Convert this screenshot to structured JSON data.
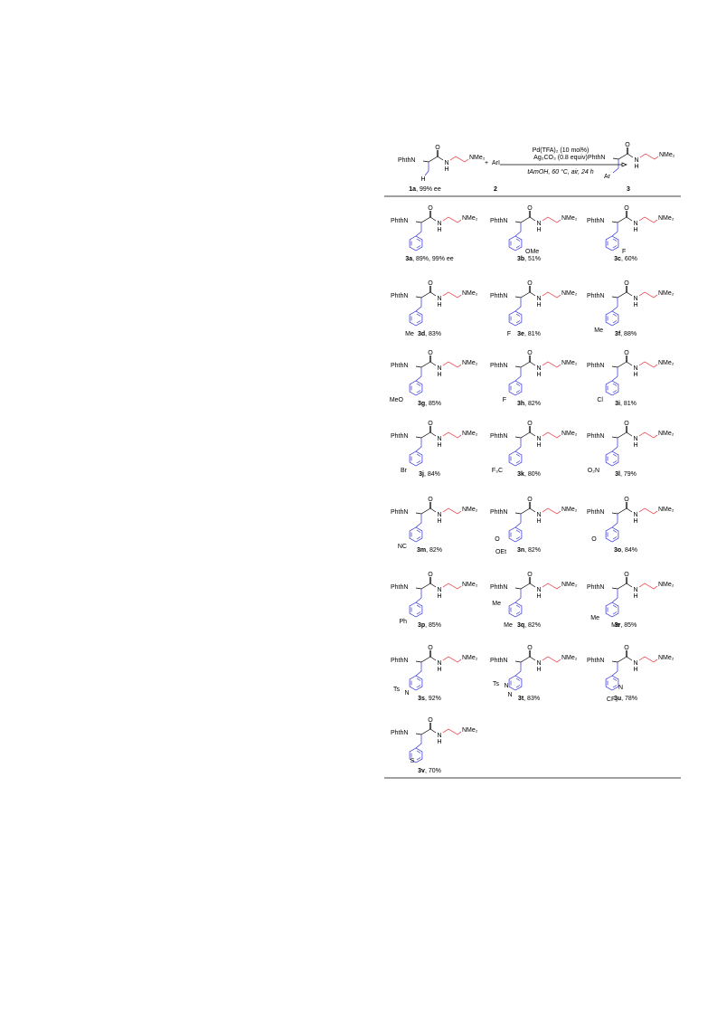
{
  "common": {
    "phthn": "PhthN",
    "o": "O",
    "n": "N",
    "h": "H",
    "nme2": "NMe₂"
  },
  "reaction": {
    "reactant_h": "H",
    "reactant_id": "1a",
    "reactant_note": ", 99% ee",
    "plus": "+",
    "reagent": "ArI",
    "reagent_id": "2",
    "conditions": [
      "Pd(TFA)₂ (10 mol%)",
      "Ag₂CO₃ (0.8 equiv)",
      "tAmOH, 60 °C, air, 24 h"
    ],
    "product_ar": "Ar",
    "product_id": "3"
  },
  "products": [
    {
      "id": "3a",
      "yield": ", 89%, 99% ee",
      "subs": []
    },
    {
      "id": "3b",
      "yield": ", 51%",
      "subs": [
        "OMe"
      ]
    },
    {
      "id": "3c",
      "yield": ", 60%",
      "subs": [
        "F"
      ]
    },
    {
      "id": "3d",
      "yield": ", 83%",
      "subs": [
        "Me"
      ]
    },
    {
      "id": "3e",
      "yield": ", 81%",
      "subs": [
        "F"
      ]
    },
    {
      "id": "3f",
      "yield": ", 88%",
      "subs": [
        "Me"
      ]
    },
    {
      "id": "3g",
      "yield": ", 85%",
      "subs": [
        "MeO"
      ]
    },
    {
      "id": "3h",
      "yield": ", 82%",
      "subs": [
        "F"
      ]
    },
    {
      "id": "3i",
      "yield": ", 81%",
      "subs": [
        "Cl"
      ]
    },
    {
      "id": "3j",
      "yield": ", 84%",
      "subs": [
        "Br"
      ]
    },
    {
      "id": "3k",
      "yield": ", 80%",
      "subs": [
        "F₃C"
      ]
    },
    {
      "id": "3l",
      "yield": ", 79%",
      "subs": [
        "O₂N"
      ]
    },
    {
      "id": "3m",
      "yield": ", 82%",
      "subs": [
        "NC"
      ]
    },
    {
      "id": "3n",
      "yield": ", 82%",
      "subs": [
        "O",
        "OEt"
      ]
    },
    {
      "id": "3o",
      "yield": ", 84%",
      "subs": [
        "O"
      ]
    },
    {
      "id": "3p",
      "yield": ", 85%",
      "subs": [
        "Ph"
      ]
    },
    {
      "id": "3q",
      "yield": ", 82%",
      "subs": [
        "Me",
        "Me"
      ]
    },
    {
      "id": "3r",
      "yield": ", 85%",
      "subs": [
        "Me",
        "Me"
      ]
    },
    {
      "id": "3s",
      "yield": ", 92%",
      "subs": [
        "Ts",
        "N"
      ]
    },
    {
      "id": "3t",
      "yield": ", 83%",
      "subs": [
        "Ts",
        "N",
        "N"
      ]
    },
    {
      "id": "3u",
      "yield": ", 78%",
      "subs": [
        "N",
        "CF₃"
      ]
    },
    {
      "id": "3v",
      "yield": ", 70%",
      "subs": [
        "S"
      ]
    }
  ]
}
